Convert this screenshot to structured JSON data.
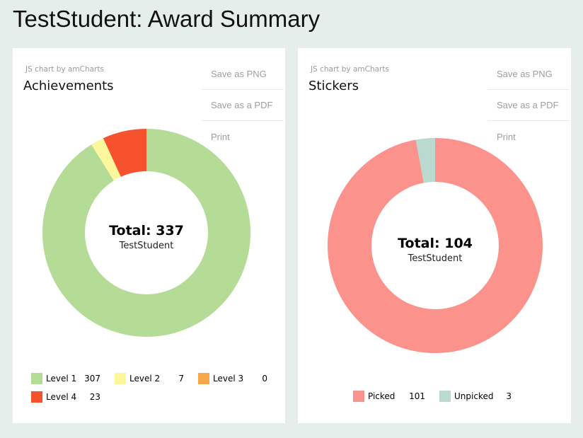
{
  "page": {
    "title": "TestStudent: Award Summary",
    "background": "#e6eeeb",
    "attribution": "JS chart by amCharts"
  },
  "export_menu": {
    "items": [
      "Save as PNG",
      "Save as a PDF",
      "Print"
    ]
  },
  "chart_data": [
    {
      "type": "pie",
      "variant": "donut",
      "title": "Achievements",
      "center_label": "Total: 337",
      "center_sublabel": "TestStudent",
      "total": 337,
      "series": [
        {
          "label": "Level 1",
          "value": 307,
          "color": "#b4dc96"
        },
        {
          "label": "Level 2",
          "value": 7,
          "color": "#fcf69d"
        },
        {
          "label": "Level 3",
          "value": 0,
          "color": "#f8a84c"
        },
        {
          "label": "Level 4",
          "value": 23,
          "color": "#f5522d"
        }
      ],
      "start_angle_deg": -90,
      "direction": "clockwise",
      "inner_radius_pct": 59,
      "legend_position": "bottom"
    },
    {
      "type": "pie",
      "variant": "donut",
      "title": "Stickers",
      "center_label": "Total: 104",
      "center_sublabel": "TestStudent",
      "total": 104,
      "series": [
        {
          "label": "Picked",
          "value": 101,
          "color": "#fb938c"
        },
        {
          "label": "Unpicked",
          "value": 3,
          "color": "#badad0"
        }
      ],
      "start_angle_deg": -90,
      "direction": "clockwise",
      "inner_radius_pct": 59,
      "legend_position": "bottom"
    }
  ]
}
